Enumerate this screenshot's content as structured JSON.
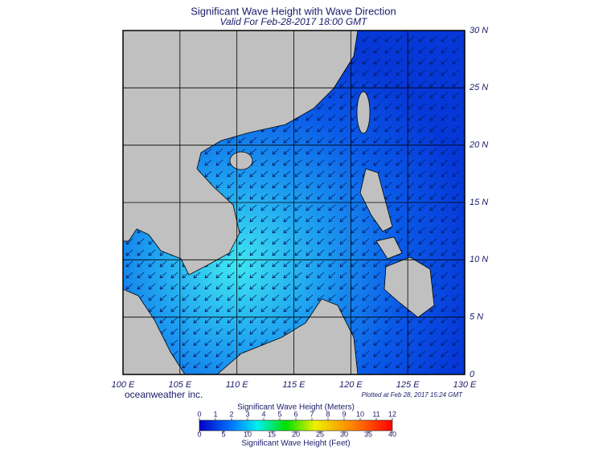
{
  "header": {
    "title": "Significant Wave Height with Wave Direction",
    "subtitle": "Valid For Feb-28-2017 18:00 GMT"
  },
  "map": {
    "lat_ticks": [
      {
        "value": 30,
        "label": "30 N"
      },
      {
        "value": 25,
        "label": "25 N"
      },
      {
        "value": 20,
        "label": "20 N"
      },
      {
        "value": 15,
        "label": "15 N"
      },
      {
        "value": 10,
        "label": "10 N"
      },
      {
        "value": 5,
        "label": "5 N"
      },
      0
    ],
    "lon_ticks": [
      {
        "value": 100,
        "label": "100 E"
      },
      {
        "value": 105,
        "label": "105 E"
      },
      {
        "value": 110,
        "label": "110 E"
      },
      {
        "value": 115,
        "label": "115 E"
      },
      {
        "value": 120,
        "label": "120 E"
      },
      {
        "value": 125,
        "label": "125 E"
      },
      {
        "value": 130,
        "label": "130 E"
      }
    ],
    "credit": "oceanweather inc.",
    "plotted": "Plotted at Feb 28, 2017 15:24 GMT"
  },
  "colorbar": {
    "top_label": "Significant Wave Height (Meters)",
    "meters_ticks": [
      0,
      1,
      2,
      3,
      4,
      5,
      6,
      7,
      8,
      9,
      10,
      11,
      12
    ],
    "feet_ticks": [
      0,
      5,
      10,
      15,
      20,
      25,
      30,
      35,
      40
    ],
    "bottom_label": "Significant Wave Height (Feet)"
  }
}
